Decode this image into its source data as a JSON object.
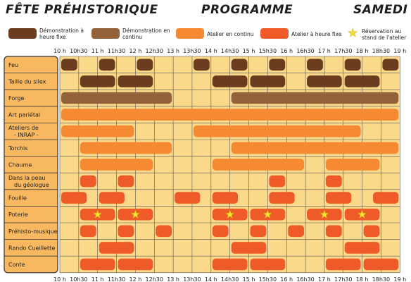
{
  "header": {
    "title_left": "FÊTE PRÉHISTORIQUE",
    "title_center": "PROGRAMME",
    "title_right": "SAMEDI"
  },
  "legend": [
    {
      "label_line1": "Démonstration à",
      "label_line2": "heure fixe",
      "color": "#6b3d1e"
    },
    {
      "label_line1": "Démonstration en",
      "label_line2": "continu",
      "color": "#93613a"
    },
    {
      "label_line1": "Atelier en continu",
      "label_line2": "",
      "color": "#f58a32"
    },
    {
      "label_line1": "Atelier à heure fixe",
      "label_line2": "",
      "color": "#ee5a28"
    },
    {
      "label_line1": "Réservation au",
      "label_line2": "stand de l'atelier",
      "color": "#f5e23a",
      "icon": "star-icon"
    }
  ],
  "time_labels": [
    "10 h",
    "10h30",
    "11 h",
    "11h30",
    "12 h",
    "12h30",
    "13 h",
    "13h30",
    "14 h",
    "14h30",
    "15 h",
    "15h30",
    "16 h",
    "16h30",
    "17 h",
    "17h30",
    "18 h",
    "18h30",
    "19 h"
  ],
  "rows": [
    {
      "label": "Feu",
      "blocks": [
        {
          "type": "demo_fixed",
          "start": 0,
          "end": 1
        },
        {
          "type": "demo_fixed",
          "start": 2,
          "end": 3
        },
        {
          "type": "demo_fixed",
          "start": 4,
          "end": 5
        },
        {
          "type": "demo_fixed",
          "start": 7,
          "end": 8
        },
        {
          "type": "demo_fixed",
          "start": 9,
          "end": 10
        },
        {
          "type": "demo_fixed",
          "start": 11,
          "end": 12
        },
        {
          "type": "demo_fixed",
          "start": 13,
          "end": 14
        },
        {
          "type": "demo_fixed",
          "start": 15,
          "end": 16
        },
        {
          "type": "demo_fixed",
          "start": 17,
          "end": 18
        }
      ]
    },
    {
      "label": "Taille du silex",
      "blocks": [
        {
          "type": "demo_fixed",
          "start": 1,
          "end": 3
        },
        {
          "type": "demo_fixed",
          "start": 3,
          "end": 5
        },
        {
          "type": "demo_fixed",
          "start": 8,
          "end": 10
        },
        {
          "type": "demo_fixed",
          "start": 10,
          "end": 12
        },
        {
          "type": "demo_fixed",
          "start": 13,
          "end": 15
        },
        {
          "type": "demo_fixed",
          "start": 15,
          "end": 17
        }
      ]
    },
    {
      "label": "Forge",
      "blocks": [
        {
          "type": "demo_cont",
          "start": 0,
          "end": 6
        },
        {
          "type": "demo_cont",
          "start": 9,
          "end": 18
        }
      ]
    },
    {
      "label": "Art pariétal",
      "blocks": [
        {
          "type": "atelier_cont",
          "start": 0,
          "end": 18
        }
      ]
    },
    {
      "label": "Ateliers de",
      "label2": "- INRAP -",
      "blocks": [
        {
          "type": "atelier_cont",
          "start": 0,
          "end": 4
        },
        {
          "type": "atelier_cont",
          "start": 7,
          "end": 16
        }
      ]
    },
    {
      "label": "Torchis",
      "blocks": [
        {
          "type": "atelier_cont",
          "start": 1,
          "end": 6
        },
        {
          "type": "atelier_cont",
          "start": 9,
          "end": 18
        }
      ]
    },
    {
      "label": "Chaume",
      "blocks": [
        {
          "type": "atelier_cont",
          "start": 1,
          "end": 5
        },
        {
          "type": "atelier_cont",
          "start": 8,
          "end": 13
        },
        {
          "type": "atelier_cont",
          "start": 14,
          "end": 17
        }
      ]
    },
    {
      "label": "Dans la peau",
      "label2": "du géologue",
      "blocks": [
        {
          "type": "atelier_fixed",
          "start": 1,
          "end": 2
        },
        {
          "type": "atelier_fixed",
          "start": 3,
          "end": 4
        },
        {
          "type": "atelier_fixed",
          "start": 11,
          "end": 12
        },
        {
          "type": "atelier_fixed",
          "start": 14,
          "end": 15
        }
      ]
    },
    {
      "label": "Fouille",
      "blocks": [
        {
          "type": "atelier_fixed",
          "start": 0,
          "end": 1.5
        },
        {
          "type": "atelier_fixed",
          "start": 2,
          "end": 3.5
        },
        {
          "type": "atelier_fixed",
          "start": 6,
          "end": 7.5
        },
        {
          "type": "atelier_fixed",
          "start": 8,
          "end": 9.5
        },
        {
          "type": "atelier_fixed",
          "start": 11,
          "end": 12.5
        },
        {
          "type": "atelier_fixed",
          "start": 14,
          "end": 15.5
        },
        {
          "type": "atelier_fixed",
          "start": 16.5,
          "end": 18
        }
      ]
    },
    {
      "label": "Poterie",
      "blocks": [
        {
          "type": "atelier_fixed",
          "start": 1,
          "end": 3,
          "star": true
        },
        {
          "type": "atelier_fixed",
          "start": 3,
          "end": 5,
          "star": true
        },
        {
          "type": "atelier_fixed",
          "start": 8,
          "end": 10,
          "star": true
        },
        {
          "type": "atelier_fixed",
          "start": 10,
          "end": 12,
          "star": true
        },
        {
          "type": "atelier_fixed",
          "start": 13,
          "end": 15,
          "star": true
        },
        {
          "type": "atelier_fixed",
          "start": 15,
          "end": 17,
          "star": true
        }
      ]
    },
    {
      "label": "Préhisto-musique",
      "blocks": [
        {
          "type": "atelier_fixed",
          "start": 1,
          "end": 2
        },
        {
          "type": "atelier_fixed",
          "start": 3,
          "end": 4
        },
        {
          "type": "atelier_fixed",
          "start": 5,
          "end": 6
        },
        {
          "type": "atelier_fixed",
          "start": 8,
          "end": 9
        },
        {
          "type": "atelier_fixed",
          "start": 10,
          "end": 11
        },
        {
          "type": "atelier_fixed",
          "start": 12,
          "end": 13
        },
        {
          "type": "atelier_fixed",
          "start": 14,
          "end": 15
        },
        {
          "type": "atelier_fixed",
          "start": 16,
          "end": 17
        }
      ]
    },
    {
      "label": "Rando Cueillette",
      "blocks": [
        {
          "type": "atelier_fixed",
          "start": 2,
          "end": 4
        },
        {
          "type": "atelier_fixed",
          "start": 9,
          "end": 11
        },
        {
          "type": "atelier_fixed",
          "start": 15,
          "end": 17
        }
      ]
    },
    {
      "label": "Conte",
      "blocks": [
        {
          "type": "atelier_fixed",
          "start": 1,
          "end": 3
        },
        {
          "type": "atelier_fixed",
          "start": 3,
          "end": 5
        },
        {
          "type": "atelier_fixed",
          "start": 8,
          "end": 10
        },
        {
          "type": "atelier_fixed",
          "start": 10,
          "end": 12
        },
        {
          "type": "atelier_fixed",
          "start": 14,
          "end": 16
        },
        {
          "type": "atelier_fixed",
          "start": 16,
          "end": 18
        }
      ]
    }
  ],
  "colors": {
    "demo_fixed": "#6b3d1e",
    "demo_cont": "#93613a",
    "atelier_cont": "#f58a32",
    "atelier_fixed": "#ee5a28",
    "star": "#f5e23a",
    "grid_bg": "#fbd98a",
    "label_bg": "#f8b860"
  }
}
